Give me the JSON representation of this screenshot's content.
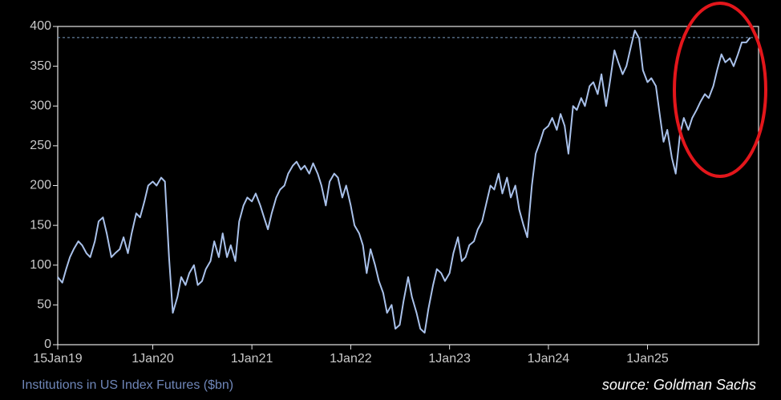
{
  "chart_data": {
    "type": "line",
    "x_title": "Institutions in US Index Futures ($bn)",
    "source": "source: Goldman Sachs",
    "xlim": [
      "2019-01-15",
      "2026-02-15"
    ],
    "xticks": [
      {
        "value": "2019-01-15",
        "label": "15Jan19"
      },
      {
        "value": "2020-01-01",
        "label": "1Jan20"
      },
      {
        "value": "2021-01-01",
        "label": "1Jan21"
      },
      {
        "value": "2022-01-01",
        "label": "1Jan22"
      },
      {
        "value": "2023-01-01",
        "label": "1Jan23"
      },
      {
        "value": "2024-01-01",
        "label": "1Jan24"
      },
      {
        "value": "2025-01-01",
        "label": "1Jan25"
      }
    ],
    "ylim": [
      0,
      400
    ],
    "yticks": [
      0,
      50,
      100,
      150,
      200,
      250,
      300,
      350,
      400
    ],
    "reference_line": 386,
    "x": [
      "2019-01-15",
      "2019-02-01",
      "2019-02-15",
      "2019-03-01",
      "2019-03-15",
      "2019-04-01",
      "2019-04-15",
      "2019-05-01",
      "2019-05-15",
      "2019-06-01",
      "2019-06-15",
      "2019-07-01",
      "2019-07-15",
      "2019-08-01",
      "2019-08-15",
      "2019-09-01",
      "2019-09-15",
      "2019-10-01",
      "2019-10-15",
      "2019-11-01",
      "2019-11-15",
      "2019-12-01",
      "2019-12-15",
      "2020-01-01",
      "2020-01-15",
      "2020-02-01",
      "2020-02-15",
      "2020-03-01",
      "2020-03-15",
      "2020-04-01",
      "2020-04-15",
      "2020-05-01",
      "2020-05-15",
      "2020-06-01",
      "2020-06-15",
      "2020-07-01",
      "2020-07-15",
      "2020-08-01",
      "2020-08-15",
      "2020-09-01",
      "2020-09-15",
      "2020-10-01",
      "2020-10-15",
      "2020-11-01",
      "2020-11-15",
      "2020-12-01",
      "2020-12-15",
      "2021-01-01",
      "2021-01-15",
      "2021-02-01",
      "2021-02-15",
      "2021-03-01",
      "2021-03-15",
      "2021-04-01",
      "2021-04-15",
      "2021-05-01",
      "2021-05-15",
      "2021-06-01",
      "2021-06-15",
      "2021-07-01",
      "2021-07-15",
      "2021-08-01",
      "2021-08-15",
      "2021-09-01",
      "2021-09-15",
      "2021-10-01",
      "2021-10-15",
      "2021-11-01",
      "2021-11-15",
      "2021-12-01",
      "2021-12-15",
      "2022-01-01",
      "2022-01-15",
      "2022-02-01",
      "2022-02-15",
      "2022-03-01",
      "2022-03-15",
      "2022-04-01",
      "2022-04-15",
      "2022-05-01",
      "2022-05-15",
      "2022-06-01",
      "2022-06-15",
      "2022-07-01",
      "2022-07-15",
      "2022-08-01",
      "2022-08-15",
      "2022-09-01",
      "2022-09-15",
      "2022-10-01",
      "2022-10-15",
      "2022-11-01",
      "2022-11-15",
      "2022-12-01",
      "2022-12-15",
      "2023-01-01",
      "2023-01-15",
      "2023-02-01",
      "2023-02-15",
      "2023-03-01",
      "2023-03-15",
      "2023-04-01",
      "2023-04-15",
      "2023-05-01",
      "2023-05-15",
      "2023-06-01",
      "2023-06-15",
      "2023-07-01",
      "2023-07-15",
      "2023-08-01",
      "2023-08-15",
      "2023-09-01",
      "2023-09-15",
      "2023-10-01",
      "2023-10-15",
      "2023-11-01",
      "2023-11-15",
      "2023-12-01",
      "2023-12-15",
      "2024-01-01",
      "2024-01-15",
      "2024-02-01",
      "2024-02-15",
      "2024-03-01",
      "2024-03-15",
      "2024-04-01",
      "2024-04-15",
      "2024-05-01",
      "2024-05-15",
      "2024-06-01",
      "2024-06-15",
      "2024-07-01",
      "2024-07-15",
      "2024-08-01",
      "2024-08-15",
      "2024-09-01",
      "2024-09-15",
      "2024-10-01",
      "2024-10-15",
      "2024-11-01",
      "2024-11-15",
      "2024-12-01",
      "2024-12-15",
      "2025-01-01",
      "2025-01-15",
      "2025-02-01",
      "2025-02-15",
      "2025-03-01",
      "2025-03-15",
      "2025-04-01",
      "2025-04-15",
      "2025-05-01",
      "2025-05-15",
      "2025-06-01",
      "2025-06-15",
      "2025-07-01",
      "2025-07-15",
      "2025-08-01",
      "2025-08-15",
      "2025-09-01",
      "2025-09-15",
      "2025-10-01",
      "2025-10-15",
      "2025-11-01",
      "2025-11-15",
      "2025-12-01",
      "2025-12-15",
      "2026-01-01",
      "2026-01-15"
    ],
    "series": [
      {
        "color": "#a9c1ea",
        "values": [
          85,
          78,
          95,
          110,
          120,
          130,
          125,
          115,
          110,
          130,
          155,
          160,
          140,
          110,
          115,
          120,
          135,
          115,
          140,
          165,
          160,
          180,
          200,
          205,
          200,
          210,
          205,
          110,
          40,
          60,
          85,
          75,
          90,
          100,
          75,
          80,
          95,
          105,
          130,
          110,
          140,
          110,
          125,
          105,
          155,
          175,
          185,
          180,
          190,
          175,
          160,
          145,
          165,
          185,
          195,
          200,
          215,
          225,
          230,
          220,
          225,
          215,
          228,
          215,
          200,
          175,
          205,
          215,
          210,
          185,
          200,
          175,
          150,
          140,
          125,
          90,
          120,
          100,
          80,
          65,
          40,
          50,
          20,
          25,
          55,
          85,
          60,
          40,
          20,
          15,
          45,
          75,
          95,
          90,
          80,
          90,
          115,
          135,
          105,
          110,
          125,
          130,
          145,
          155,
          175,
          200,
          195,
          215,
          190,
          210,
          185,
          200,
          170,
          150,
          135,
          200,
          240,
          255,
          270,
          275,
          285,
          270,
          290,
          275,
          240,
          300,
          295,
          310,
          300,
          325,
          330,
          315,
          340,
          300,
          330,
          370,
          355,
          340,
          350,
          375,
          395,
          385,
          345,
          330,
          335,
          325,
          290,
          255,
          270,
          235,
          215,
          265,
          285,
          270,
          285,
          295,
          305,
          315,
          310,
          325,
          345,
          365,
          355,
          360,
          350,
          365,
          380,
          380,
          386
        ]
      }
    ]
  }
}
